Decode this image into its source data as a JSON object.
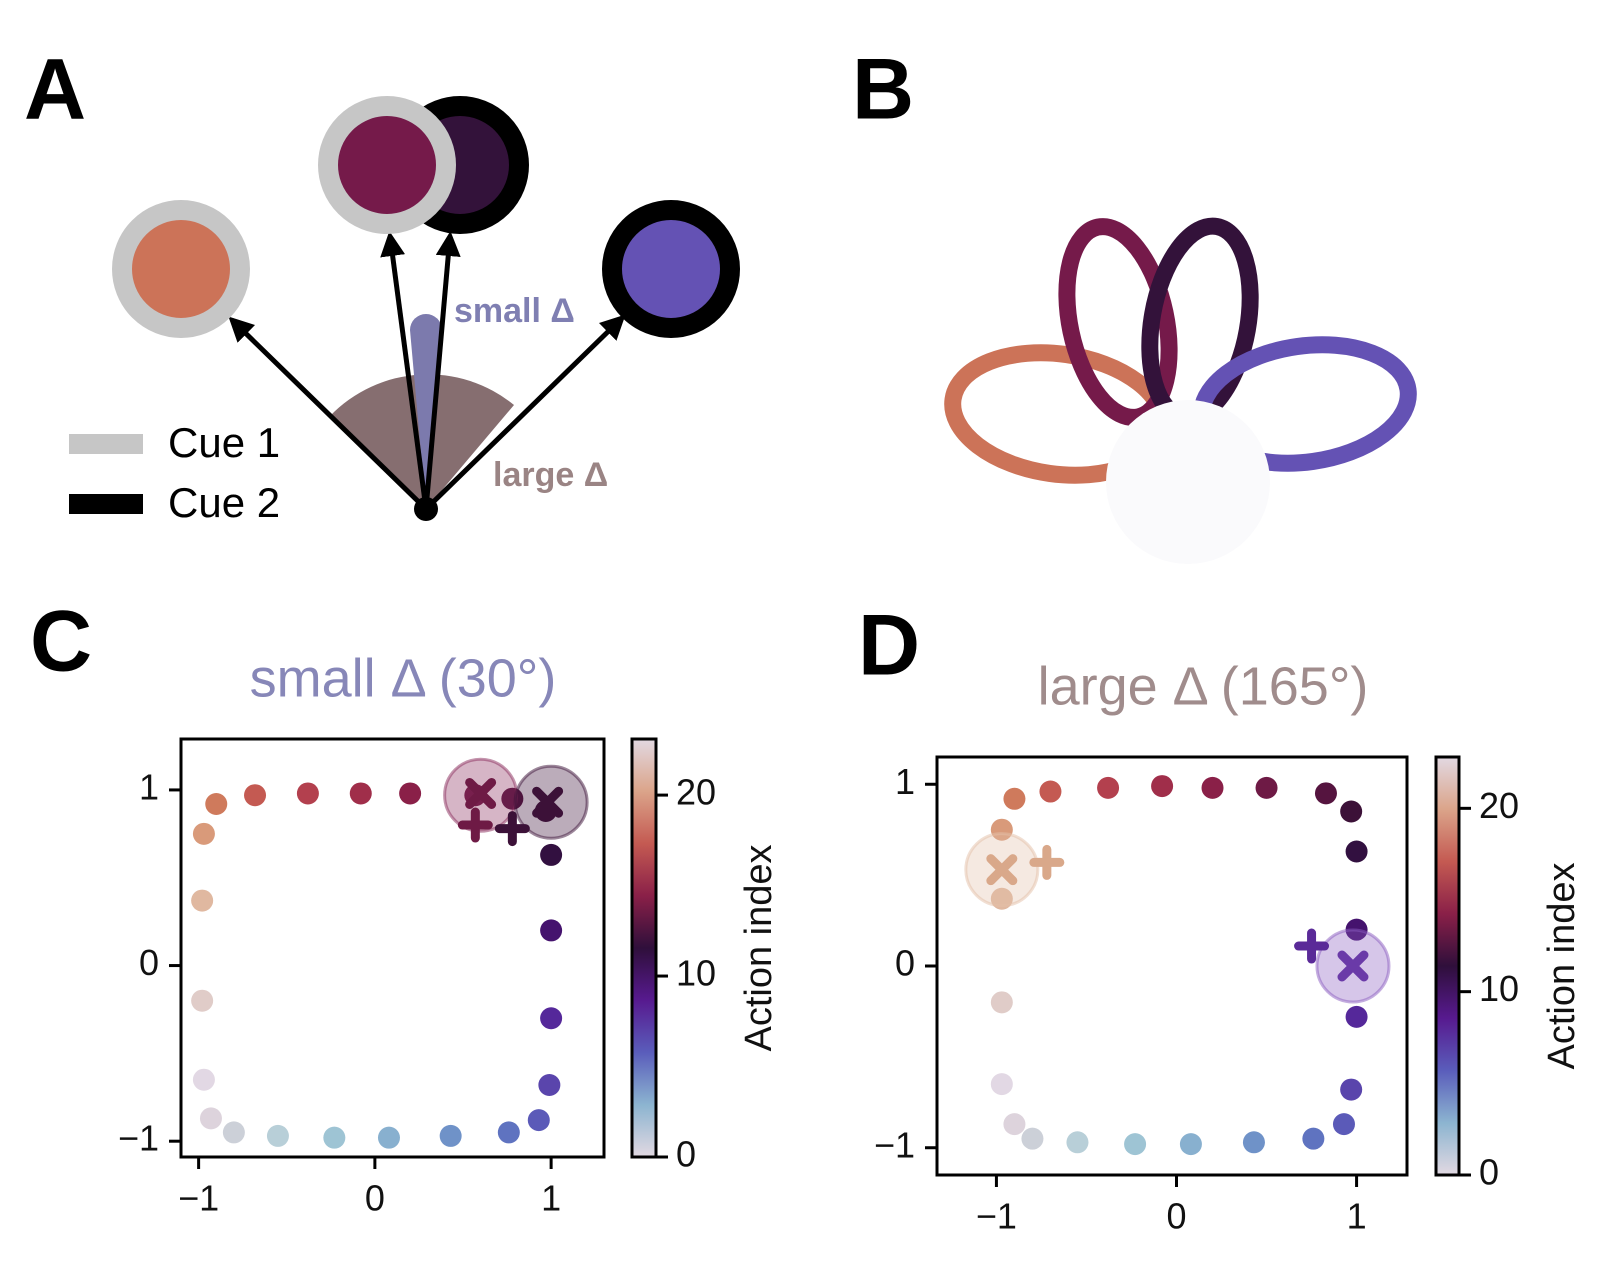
{
  "panels": {
    "labels": [
      "A",
      "B",
      "C",
      "D"
    ]
  },
  "diagram": {
    "small_delta": "small Δ",
    "large_delta": "large Δ",
    "legend": [
      "Cue 1",
      "Cue 2"
    ]
  },
  "chart_data": [
    {
      "type": "scatter",
      "title": "small Δ (30°)",
      "title_color": "#8787b8",
      "x": [
        -0.97,
        -0.93,
        -0.8,
        -0.55,
        -0.23,
        0.08,
        0.43,
        0.76,
        0.93,
        0.99,
        1.0,
        1.0,
        1.0,
        0.97,
        0.78,
        0.57,
        0.2,
        -0.08,
        -0.38,
        -0.68,
        -0.9,
        -0.97,
        -0.98,
        -0.98
      ],
      "y": [
        -0.65,
        -0.87,
        -0.95,
        -0.97,
        -0.98,
        -0.98,
        -0.97,
        -0.95,
        -0.88,
        -0.68,
        -0.3,
        0.2,
        0.63,
        0.88,
        0.95,
        0.97,
        0.98,
        0.98,
        0.98,
        0.97,
        0.92,
        0.75,
        0.37,
        -0.2
      ],
      "colors": [
        "#e2d8e4",
        "#ddd3dc",
        "#ccd0d8",
        "#b8cfd8",
        "#9ec4d4",
        "#88b0cf",
        "#6f92c8",
        "#5f73c0",
        "#5b5ab8",
        "#5a45ac",
        "#55289a",
        "#45136e",
        "#321040",
        "#3c1138",
        "#55143f",
        "#6e1a45",
        "#8a2048",
        "#a02e4a",
        "#b3404e",
        "#c45a52",
        "#cf7a5c",
        "#d99a7a",
        "#e0b8a0",
        "#e0ccc8"
      ],
      "targets": {
        "x": [
          0.6,
          1.0
        ],
        "y": [
          0.97,
          0.93
        ],
        "colors": [
          "#8a2c5c",
          "#3c1138"
        ]
      },
      "x_markers": {
        "x": [
          0.6,
          0.98
        ],
        "y": [
          0.98,
          0.93
        ],
        "colors": [
          "#6e1a45",
          "#3c1138"
        ]
      },
      "plus_markers": {
        "x": [
          0.57,
          0.78
        ],
        "y": [
          0.8,
          0.78
        ],
        "colors": [
          "#6e1a45",
          "#3c1138"
        ]
      },
      "xlim": [
        -1.1,
        1.3
      ],
      "ylim": [
        -1.09,
        1.29
      ],
      "xticks": [
        {
          "value": -1,
          "label": "−1"
        },
        0,
        1
      ],
      "yticks": [
        {
          "value": -1,
          "label": "−1"
        },
        0,
        1
      ],
      "colorbar": {
        "label": "Action index",
        "lim": [
          0,
          23.1
        ],
        "ticks": [
          0,
          10,
          20
        ],
        "colors": [
          "#e2d9e2",
          "#8cb4d0",
          "#5a5dbb",
          "#571a8f",
          "#2f0f3b",
          "#8a2048",
          "#c45a52",
          "#dba48a",
          "#e2d9e2"
        ]
      }
    },
    {
      "type": "scatter",
      "title": "large Δ (165°)",
      "title_color": "#a08c8c",
      "x": [
        -0.97,
        -0.9,
        -0.8,
        -0.55,
        -0.23,
        0.08,
        0.43,
        0.76,
        0.93,
        0.97,
        1.0,
        1.0,
        1.0,
        0.97,
        0.83,
        0.5,
        0.2,
        -0.08,
        -0.38,
        -0.7,
        -0.9,
        -0.97,
        -0.97,
        -0.97
      ],
      "y": [
        -0.65,
        -0.87,
        -0.95,
        -0.97,
        -0.98,
        -0.98,
        -0.97,
        -0.95,
        -0.87,
        -0.68,
        -0.28,
        0.2,
        0.63,
        0.85,
        0.95,
        0.98,
        0.98,
        0.99,
        0.98,
        0.96,
        0.92,
        0.75,
        0.37,
        -0.2
      ],
      "colors": [
        "#e2d8e4",
        "#ddd3dc",
        "#ccd0d8",
        "#b8cfd8",
        "#9ec4d4",
        "#88b0cf",
        "#6f92c8",
        "#5f73c0",
        "#5b5ab8",
        "#5a45ac",
        "#55289a",
        "#45136e",
        "#321040",
        "#3c1138",
        "#55143f",
        "#6e1a45",
        "#8a2048",
        "#a02e4a",
        "#b3404e",
        "#c45a52",
        "#cf7a5c",
        "#d99a7a",
        "#e0b8a0",
        "#e0ccc8"
      ],
      "targets": {
        "x": [
          -0.97,
          0.98
        ],
        "y": [
          0.53,
          0.0
        ],
        "colors": [
          "#e3bfa8",
          "#8a5cc0"
        ]
      },
      "x_markers": {
        "x": [
          -0.97,
          0.98
        ],
        "y": [
          0.53,
          0.0
        ],
        "colors": [
          "#d9a88a",
          "#6a3aa8"
        ]
      },
      "plus_markers": {
        "x": [
          -0.72,
          0.75
        ],
        "y": [
          0.57,
          0.11
        ],
        "colors": [
          "#d9a88a",
          "#5a2a98"
        ]
      },
      "xlim": [
        -1.33,
        1.28
      ],
      "ylim": [
        -1.15,
        1.15
      ],
      "xticks": [
        {
          "value": -1,
          "label": "−1"
        },
        0,
        1
      ],
      "yticks": [
        {
          "value": -1,
          "label": "−1"
        },
        0,
        1
      ],
      "colorbar": {
        "label": "Action index",
        "lim": [
          0,
          22.8
        ],
        "ticks": [
          0,
          10,
          20
        ],
        "colors": [
          "#e2d9e2",
          "#8cb4d0",
          "#5a5dbb",
          "#571a8f",
          "#2f0f3b",
          "#8a2048",
          "#c45a52",
          "#dba48a",
          "#e2d9e2"
        ]
      }
    }
  ]
}
